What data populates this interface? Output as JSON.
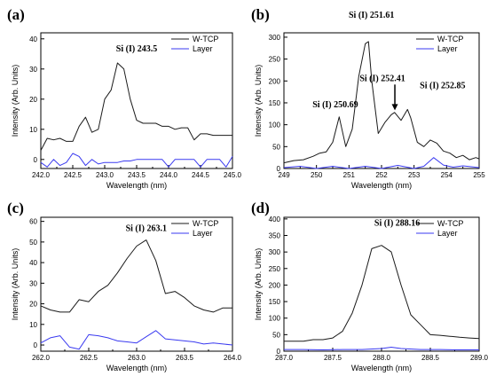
{
  "colors": {
    "wtcp": "#1a1a1a",
    "layer": "#3a3af0"
  },
  "chart_data": [
    {
      "panel_label": "(a)",
      "type": "line",
      "xlabel": "Wavelength (nm)",
      "ylabel": "Intensity (Arb. Units)",
      "xlim": [
        242.0,
        245.0
      ],
      "ylim": [
        -3,
        42
      ],
      "xticks": [
        "242.0",
        "242.5",
        "243.0",
        "243.5",
        "244.0",
        "244.5",
        "245.0"
      ],
      "yticks": [
        "0",
        "10",
        "20",
        "30",
        "40"
      ],
      "legend_position": "top-right",
      "annotations": [
        {
          "text": "Si (I) 243.5",
          "x": 243.5,
          "y": 32
        }
      ],
      "series": [
        {
          "name": "W-TCP",
          "x": [
            242.0,
            242.1,
            242.2,
            242.3,
            242.4,
            242.5,
            242.6,
            242.7,
            242.8,
            242.9,
            243.0,
            243.1,
            243.2,
            243.3,
            243.4,
            243.5,
            243.6,
            243.7,
            243.8,
            243.9,
            244.0,
            244.1,
            244.2,
            244.3,
            244.4,
            244.5,
            244.6,
            244.7,
            244.8,
            244.9,
            245.0
          ],
          "y": [
            3,
            7,
            6.5,
            7,
            6,
            6,
            11,
            14,
            9,
            10,
            20,
            23,
            32,
            30,
            20,
            13,
            12,
            12,
            12,
            11,
            11,
            10,
            10.5,
            10.5,
            6.5,
            8.5,
            8.5,
            8,
            8,
            8,
            8
          ]
        },
        {
          "name": "Layer",
          "x": [
            242.0,
            242.1,
            242.2,
            242.3,
            242.4,
            242.5,
            242.6,
            242.7,
            242.8,
            242.9,
            243.0,
            243.1,
            243.2,
            243.3,
            243.4,
            243.5,
            243.6,
            243.7,
            243.8,
            243.9,
            244.0,
            244.1,
            244.2,
            244.3,
            244.4,
            244.5,
            244.6,
            244.7,
            244.8,
            244.9,
            245.0
          ],
          "y": [
            -1,
            -2.5,
            0,
            -2,
            -1,
            2,
            1,
            -2,
            0,
            -1.5,
            -1,
            -1,
            -1,
            -0.5,
            -0.5,
            0,
            0,
            0,
            0,
            0,
            -2.5,
            0,
            0,
            0,
            0,
            -2.5,
            0,
            0,
            0,
            -2.5,
            1
          ]
        }
      ]
    },
    {
      "panel_label": "(b)",
      "type": "line",
      "xlabel": "Wavelength (nm)",
      "ylabel": "Intensity (Arb. Units)",
      "xlim": [
        249,
        255
      ],
      "ylim": [
        0,
        310
      ],
      "xticks": [
        "249",
        "250",
        "251",
        "252",
        "253",
        "254",
        "255"
      ],
      "yticks": [
        "0",
        "50",
        "100",
        "150",
        "200",
        "250",
        "300"
      ],
      "legend_position": "top-right",
      "annotations": [
        {
          "text": "Si (I) 251.61",
          "x": 251.61,
          "y": 290
        },
        {
          "text": "Si (I) 252.41",
          "x": 252.41,
          "y": 127
        },
        {
          "text": "Si (I) 252.85",
          "x": 252.85,
          "y": 135
        },
        {
          "text": "Si (I) 250.69",
          "x": 250.69,
          "y": 118
        }
      ],
      "series": [
        {
          "name": "W-TCP",
          "x": [
            249,
            249.3,
            249.6,
            249.9,
            250.1,
            250.3,
            250.5,
            250.7,
            250.9,
            251.1,
            251.3,
            251.5,
            251.6,
            251.7,
            251.9,
            252.1,
            252.3,
            252.4,
            252.6,
            252.8,
            252.9,
            253.1,
            253.3,
            253.5,
            253.7,
            253.9,
            254.1,
            254.3,
            254.5,
            254.7,
            254.9,
            255
          ],
          "y": [
            13,
            18,
            20,
            28,
            35,
            38,
            60,
            118,
            50,
            90,
            210,
            285,
            290,
            200,
            80,
            105,
            123,
            128,
            110,
            135,
            115,
            60,
            50,
            65,
            58,
            40,
            35,
            25,
            30,
            20,
            25,
            22
          ]
        },
        {
          "name": "Layer",
          "x": [
            249,
            249.5,
            250,
            250.5,
            251,
            251.5,
            252,
            252.5,
            253,
            253.3,
            253.6,
            253.9,
            254.2,
            254.5,
            255
          ],
          "y": [
            2,
            5,
            0,
            5,
            0,
            5,
            0,
            7,
            0,
            5,
            25,
            8,
            3,
            6,
            2
          ]
        }
      ]
    },
    {
      "panel_label": "(c)",
      "type": "line",
      "xlabel": "Wavelength (nm)",
      "ylabel": "Intensity (Arb. Units)",
      "xlim": [
        262.0,
        264.0
      ],
      "ylim": [
        -3,
        62
      ],
      "xticks": [
        "262.0",
        "262.5",
        "263.0",
        "263.5",
        "264.0"
      ],
      "yticks": [
        "0",
        "10",
        "20",
        "30",
        "40",
        "50",
        "60"
      ],
      "legend_position": "top-right",
      "annotations": [
        {
          "text": "Si (I) 263.1",
          "x": 263.1,
          "y": 51
        }
      ],
      "series": [
        {
          "name": "W-TCP",
          "x": [
            262.0,
            262.1,
            262.2,
            262.3,
            262.4,
            262.5,
            262.6,
            262.7,
            262.8,
            262.9,
            263.0,
            263.1,
            263.2,
            263.3,
            263.4,
            263.5,
            263.6,
            263.7,
            263.8,
            263.9,
            264.0
          ],
          "y": [
            19,
            17,
            16,
            16,
            22,
            21,
            26,
            29,
            35,
            42,
            48,
            51,
            41,
            25,
            26,
            23,
            19,
            17,
            16,
            18,
            18
          ]
        },
        {
          "name": "Layer",
          "x": [
            262.0,
            262.1,
            262.2,
            262.3,
            262.4,
            262.5,
            262.6,
            262.7,
            262.8,
            262.9,
            263.0,
            263.1,
            263.2,
            263.3,
            263.4,
            263.5,
            263.6,
            263.7,
            263.8,
            263.9,
            264.0
          ],
          "y": [
            1,
            3.5,
            4.5,
            -1,
            -2,
            5,
            4.5,
            3.5,
            2,
            1.5,
            1,
            4,
            7,
            3,
            2.5,
            2,
            1.5,
            0.5,
            1,
            0.5,
            0
          ]
        }
      ]
    },
    {
      "panel_label": "(d)",
      "type": "line",
      "xlabel": "Wavelength (nm)",
      "ylabel": "Intensity (Arb. Units)",
      "xlim": [
        287.0,
        289.0
      ],
      "ylim": [
        0,
        405
      ],
      "xticks": [
        "287.0",
        "287.5",
        "288.0",
        "288.5",
        "289.0"
      ],
      "yticks": [
        "0",
        "50",
        "100",
        "150",
        "200",
        "250",
        "300",
        "350",
        "400"
      ],
      "legend_position": "top-right",
      "annotations": [
        {
          "text": "Si (I) 288.16",
          "x": 288.16,
          "y": 320
        }
      ],
      "series": [
        {
          "name": "W-TCP",
          "x": [
            287.0,
            287.1,
            287.2,
            287.3,
            287.4,
            287.5,
            287.6,
            287.7,
            287.8,
            287.9,
            288.0,
            288.1,
            288.2,
            288.3,
            288.4,
            288.5,
            288.6,
            288.7,
            288.8,
            288.9,
            289.0
          ],
          "y": [
            30,
            30,
            30,
            35,
            35,
            40,
            60,
            115,
            200,
            310,
            320,
            300,
            200,
            110,
            80,
            50,
            48,
            45,
            42,
            40,
            38
          ]
        },
        {
          "name": "Layer",
          "x": [
            287.0,
            287.2,
            287.4,
            287.6,
            287.8,
            288.0,
            288.1,
            288.2,
            288.4,
            288.6,
            288.8,
            289.0
          ],
          "y": [
            5,
            5,
            4,
            5,
            5,
            8,
            12,
            8,
            5,
            5,
            4,
            4
          ]
        }
      ]
    }
  ]
}
